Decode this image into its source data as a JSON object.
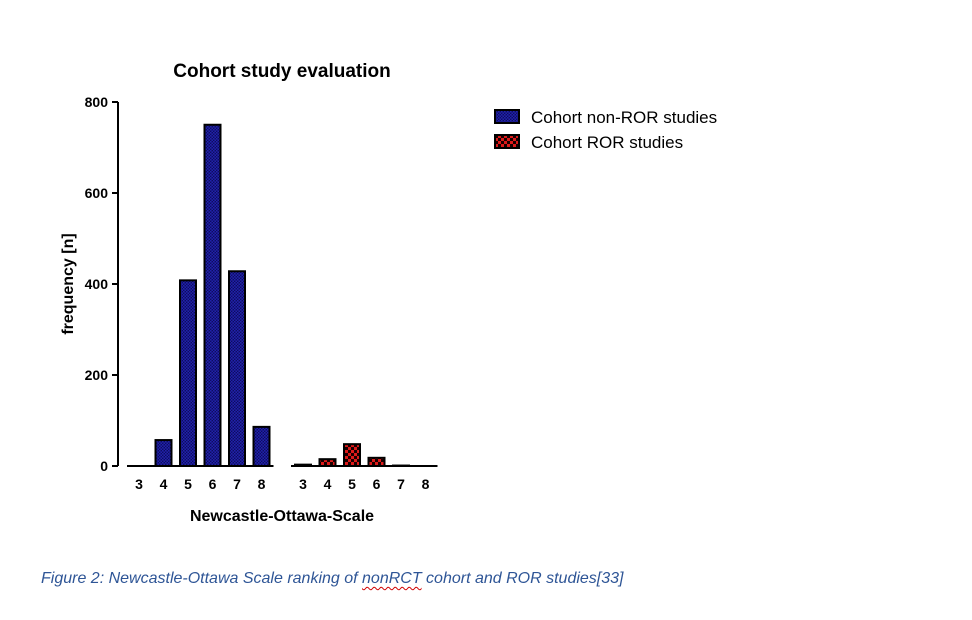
{
  "chart_data": {
    "type": "bar",
    "title": "Cohort study evaluation",
    "xlabel": "Newcastle-Ottawa-Scale",
    "ylabel": "frequency [n]",
    "ylim": [
      0,
      800
    ],
    "yticks": [
      "0",
      "200",
      "400",
      "600",
      "800"
    ],
    "grid": false,
    "legend_position": "right",
    "groups": [
      {
        "series": "Cohort non-ROR studies",
        "categories": [
          "3",
          "4",
          "5",
          "6",
          "7",
          "8"
        ],
        "values": [
          0,
          57,
          408,
          750,
          428,
          86
        ]
      },
      {
        "series": "Cohort ROR studies",
        "categories": [
          "3",
          "4",
          "5",
          "6",
          "7",
          "8"
        ],
        "values": [
          3,
          15,
          48,
          18,
          1,
          0
        ]
      }
    ],
    "legend": [
      {
        "name": "Cohort non-ROR studies",
        "color": "#1a1a99",
        "pattern": "fine crosshatch"
      },
      {
        "name": "Cohort ROR studies",
        "color": "#dd1a1a",
        "pattern": "checkerboard"
      }
    ]
  },
  "caption": {
    "before": "Figure 2: Newcastle-Ottawa Scale ranking of ",
    "marked": "nonRCT",
    "after": " cohort and ROR studies[33]"
  },
  "colors": {
    "non_ror": "#1a1a99",
    "ror": "#dd1a1a",
    "caption": "#2e5596"
  }
}
